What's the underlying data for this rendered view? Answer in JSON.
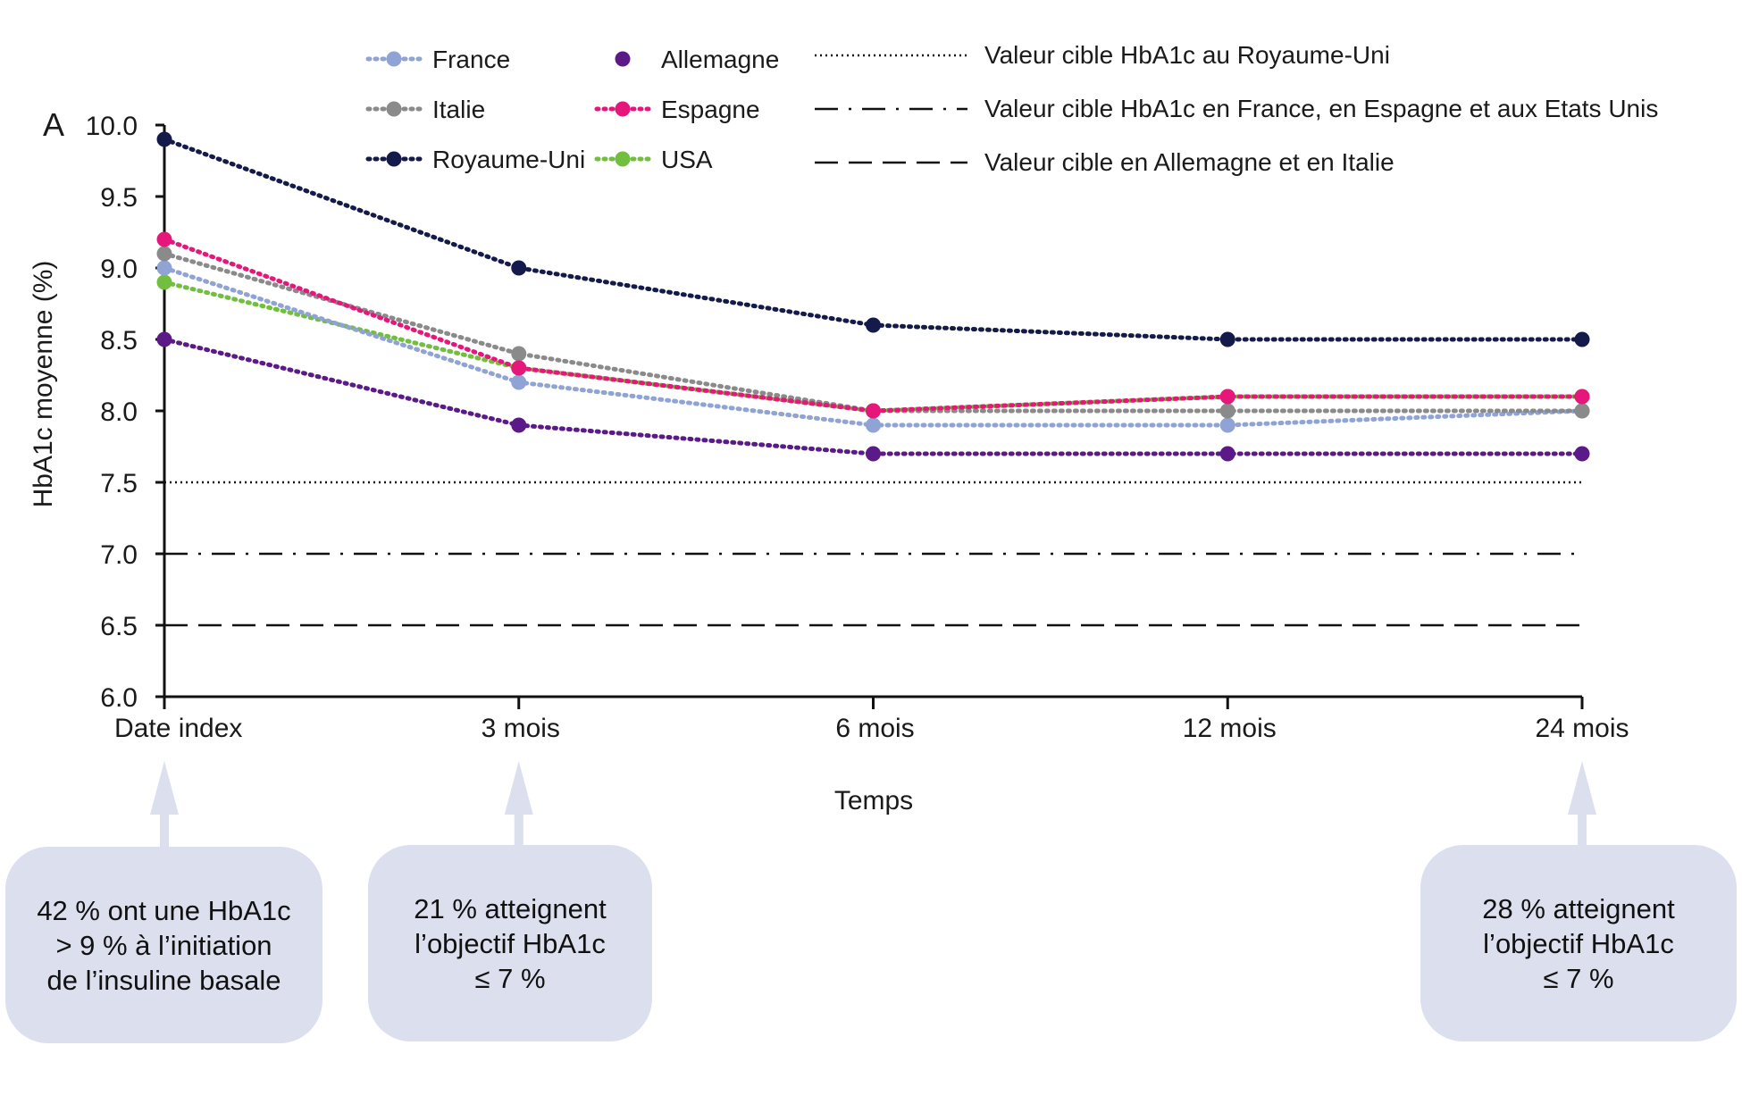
{
  "chart_data": {
    "type": "line",
    "panel_label": "A",
    "xlabel": "Temps",
    "ylabel": "HbA1c moyenne (%)",
    "ylim": [
      6.0,
      10.0
    ],
    "y_ticks": [
      "6.0",
      "6.5",
      "7.0",
      "7.5",
      "8.0",
      "8.5",
      "9.0",
      "9.5",
      "10.0"
    ],
    "categories": [
      "Date index",
      "3 mois",
      "6 mois",
      "12 mois",
      "24 mois"
    ],
    "series": [
      {
        "name": "France",
        "color": "#8fa3d4",
        "values": [
          9.0,
          8.2,
          7.9,
          7.9,
          8.0
        ]
      },
      {
        "name": "Italie",
        "color": "#8a8a8a",
        "values": [
          9.1,
          8.4,
          8.0,
          8.0,
          8.0
        ]
      },
      {
        "name": "Royaume-Uni",
        "color": "#141a4a",
        "values": [
          9.9,
          9.0,
          8.6,
          8.5,
          8.5
        ]
      },
      {
        "name": "Allemagne",
        "color": "#5b1a87",
        "values": [
          8.5,
          7.9,
          7.7,
          7.7,
          7.7
        ]
      },
      {
        "name": "Espagne",
        "color": "#e6177a",
        "values": [
          9.2,
          8.3,
          8.0,
          8.1,
          8.1
        ]
      },
      {
        "name": "USA",
        "color": "#72bf3f",
        "values": [
          8.9,
          8.3,
          8.0,
          8.1,
          8.1
        ]
      }
    ],
    "reference_lines": [
      {
        "name": "Valeur cible HbA1c au Royaume-Uni",
        "value": 7.5,
        "style": "dotted"
      },
      {
        "name": "Valeur cible HbA1c en France, en Espagne et aux Etats Unis",
        "value": 7.0,
        "style": "dash-dot"
      },
      {
        "name": "Valeur cible en Allemagne et en Italie",
        "value": 6.5,
        "style": "dashed"
      }
    ],
    "legend_position": "top"
  },
  "callouts": [
    {
      "lines": [
        "42 % ont une HbA1c",
        "> 9 % à  l’initiation",
        "de l’insuline basale"
      ]
    },
    {
      "lines": [
        "21 % atteignent",
        "l’objectif HbA1c",
        "≤ 7 %"
      ]
    },
    {
      "lines": [
        "28 % atteignent",
        "l’objectif HbA1c",
        "≤ 7 %"
      ]
    }
  ],
  "colors": {
    "callout_bg": "#dcdfee",
    "arrow": "#dcdfee",
    "axis": "#111111"
  }
}
